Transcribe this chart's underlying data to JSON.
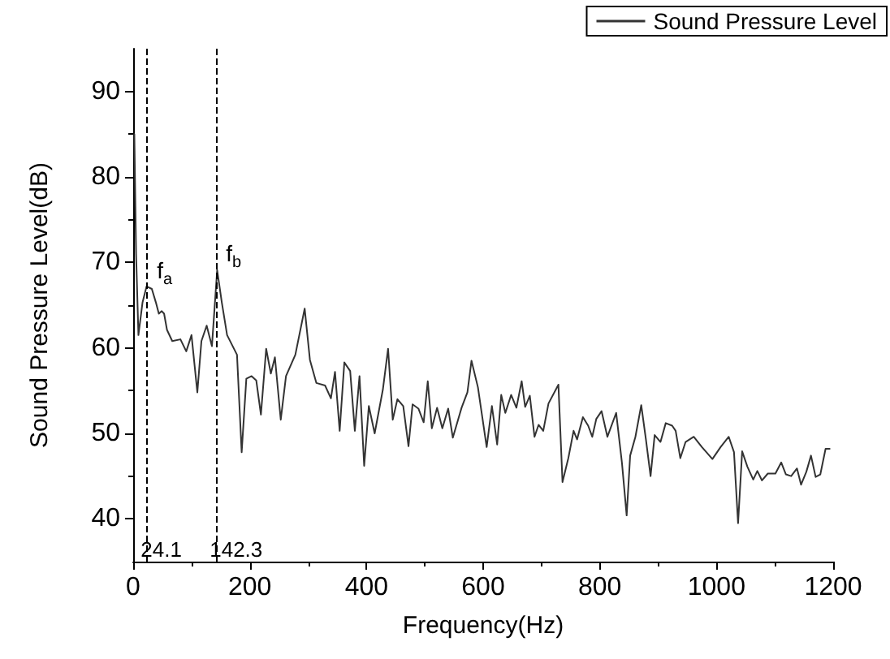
{
  "chart_data": {
    "type": "line",
    "xlabel": "Frequency(Hz)",
    "ylabel": "Sound Pressure Level(dB)",
    "x": [
      2,
      5,
      9,
      16,
      23,
      32,
      39,
      44,
      49,
      53,
      58,
      67,
      81,
      91,
      100,
      110,
      117,
      126,
      135,
      144,
      152,
      161,
      178,
      186,
      194,
      203,
      211,
      219,
      228,
      236,
      243,
      253,
      262,
      278,
      294,
      303,
      314,
      329,
      339,
      346,
      354,
      362,
      372,
      380,
      388,
      396,
      404,
      414,
      428,
      437,
      445,
      453,
      463,
      472,
      479,
      489,
      498,
      505,
      512,
      521,
      530,
      540,
      548,
      563,
      573,
      580,
      591,
      606,
      615,
      624,
      631,
      638,
      648,
      657,
      666,
      672,
      680,
      688,
      695,
      703,
      712,
      729,
      736,
      746,
      755,
      761,
      771,
      780,
      787,
      794,
      803,
      813,
      828,
      838,
      846,
      852,
      861,
      871,
      879,
      887,
      894,
      904,
      913,
      924,
      930,
      938,
      947,
      961,
      975,
      993,
      1007,
      1021,
      1030,
      1037,
      1044,
      1053,
      1063,
      1070,
      1078,
      1088,
      1101,
      1111,
      1119,
      1128,
      1138,
      1145,
      1154,
      1162,
      1170,
      1178,
      1187,
      1194
    ],
    "series": [
      {
        "name": "Sound Pressure Level",
        "color": "#333333",
        "values": [
          85,
          71,
          61.5,
          65.3,
          67.2,
          66.9,
          65.3,
          64,
          64.3,
          64,
          62.1,
          60.8,
          61,
          59.6,
          61.5,
          54.8,
          60.8,
          62.6,
          60.2,
          69.1,
          65.3,
          61.5,
          59.2,
          47.8,
          56.4,
          56.7,
          56.2,
          52.2,
          59.9,
          57,
          58.9,
          51.6,
          56.7,
          59.2,
          64.6,
          58.6,
          55.9,
          55.6,
          54.1,
          57.2,
          50.3,
          58.3,
          57.3,
          50.3,
          56.7,
          46.2,
          53.2,
          50,
          55.1,
          59.9,
          51.6,
          54,
          53.2,
          48.5,
          53.4,
          52.9,
          51.3,
          56.1,
          50.6,
          53,
          50.6,
          52.9,
          49.5,
          53,
          54.8,
          58.5,
          55.4,
          48.4,
          53.2,
          48.7,
          54.5,
          52.4,
          54.5,
          53,
          56.1,
          53.1,
          54.4,
          49.6,
          51,
          50.3,
          53.5,
          55.7,
          44.3,
          47.1,
          50.3,
          49.3,
          51.9,
          50.9,
          49.6,
          51.7,
          52.6,
          49.6,
          52.4,
          46.5,
          40.4,
          47.4,
          49.6,
          53.3,
          49.3,
          45,
          49.8,
          49,
          51.2,
          50.9,
          50.3,
          47.1,
          49,
          49.6,
          48.4,
          47,
          48.4,
          49.6,
          47.8,
          39.5,
          47.9,
          46.1,
          44.6,
          45.6,
          44.5,
          45.3,
          45.3,
          46.6,
          45.2,
          45,
          45.9,
          44,
          45.5,
          47.4,
          44.9,
          45.2,
          48.2,
          48.2
        ]
      }
    ],
    "xlim": [
      0,
      1200
    ],
    "xticks": [
      0,
      200,
      400,
      600,
      800,
      1000,
      1200
    ],
    "ylim": [
      35,
      95
    ],
    "yticks": [
      40,
      50,
      60,
      70,
      80,
      90
    ],
    "ref_lines": [
      {
        "axis": "x",
        "value": 24.1,
        "label": "24.1",
        "line_style": "dashed"
      },
      {
        "axis": "x",
        "value": 142.3,
        "label": "142.3",
        "line_style": "dashed"
      }
    ],
    "annotations": [
      {
        "text": "f$_{a}$",
        "x": 24.1,
        "y": 68.5
      },
      {
        "text": "f$_{b}$",
        "x": 142.3,
        "y": 70.5
      }
    ],
    "legend": "top right",
    "grid": false,
    "marker": "none",
    "line_style": "solid"
  }
}
